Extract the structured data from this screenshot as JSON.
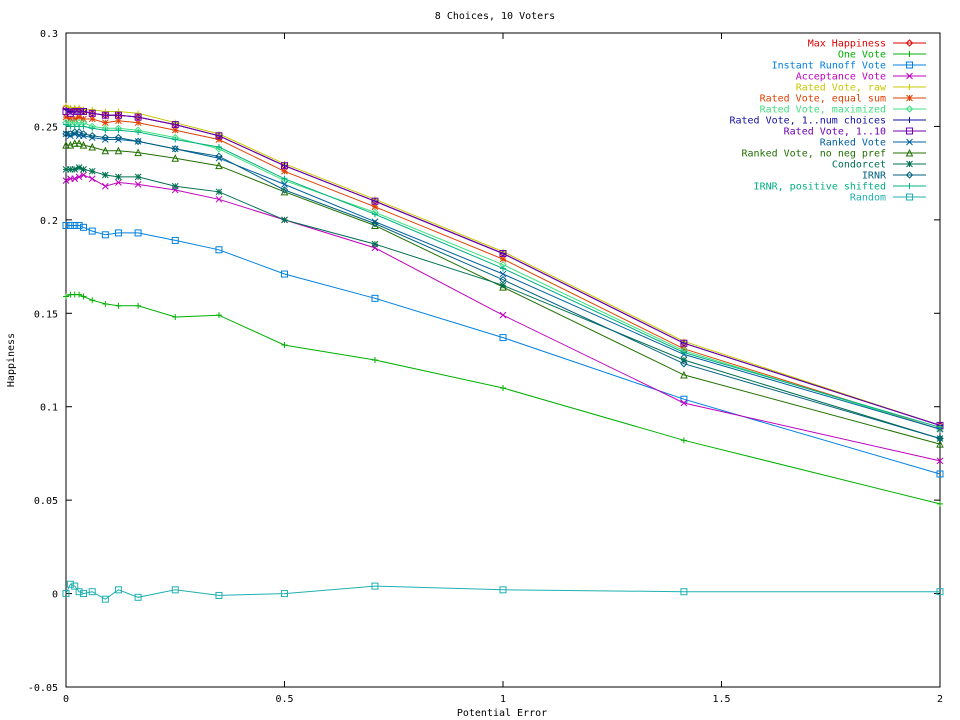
{
  "chart_data": {
    "type": "line",
    "title": "8 Choices, 10 Voters",
    "xlabel": "Potential Error",
    "ylabel": "Happiness",
    "xlim": [
      0,
      2
    ],
    "ylim": [
      -0.05,
      0.3
    ],
    "xticks": [
      "0",
      "0.5",
      "1",
      "1.5",
      "2"
    ],
    "yticks": [
      "0.3",
      "0.25",
      "0.2",
      "0.15",
      "0.1",
      "0.05",
      "0",
      "-0.05"
    ],
    "legend_position": "top-right",
    "grid": false,
    "x": [
      0,
      0.01,
      0.02,
      0.03,
      0.04,
      0.06,
      0.09,
      0.12,
      0.165,
      0.25,
      0.35,
      0.5,
      0.707,
      1.0,
      1.414,
      2.0
    ],
    "series": [
      {
        "name": "Max Happiness",
        "color": "#e00000",
        "marker": "diamond",
        "values": [
          0.26,
          0.259,
          0.259,
          0.259,
          0.258,
          0.257,
          0.256,
          0.256,
          0.255,
          0.251,
          0.245,
          0.229,
          0.21,
          0.182,
          0.134,
          0.09
        ]
      },
      {
        "name": "One Vote",
        "color": "#00b000",
        "marker": "plus",
        "values": [
          0.159,
          0.16,
          0.16,
          0.16,
          0.159,
          0.157,
          0.155,
          0.154,
          0.154,
          0.148,
          0.149,
          0.133,
          0.125,
          0.11,
          0.082,
          0.048
        ]
      },
      {
        "name": "Instant Runoff Vote",
        "color": "#0080e0",
        "marker": "square",
        "values": [
          0.197,
          0.197,
          0.197,
          0.197,
          0.196,
          0.194,
          0.192,
          0.193,
          0.193,
          0.189,
          0.184,
          0.171,
          0.158,
          0.137,
          0.104,
          0.064
        ]
      },
      {
        "name": "Acceptance Vote",
        "color": "#c000c0",
        "marker": "x",
        "values": [
          0.221,
          0.222,
          0.222,
          0.223,
          0.224,
          0.222,
          0.218,
          0.22,
          0.219,
          0.216,
          0.211,
          0.2,
          0.185,
          0.149,
          0.102,
          0.071
        ]
      },
      {
        "name": "Rated Vote, raw",
        "color": "#c8c800",
        "marker": "plus",
        "values": [
          0.261,
          0.26,
          0.26,
          0.26,
          0.259,
          0.259,
          0.258,
          0.258,
          0.257,
          0.252,
          0.246,
          0.23,
          0.211,
          0.183,
          0.135,
          0.09
        ]
      },
      {
        "name": "Rated Vote, equal sum",
        "color": "#e04000",
        "marker": "star",
        "values": [
          0.255,
          0.254,
          0.254,
          0.255,
          0.254,
          0.254,
          0.252,
          0.253,
          0.252,
          0.248,
          0.243,
          0.226,
          0.207,
          0.179,
          0.131,
          0.088
        ]
      },
      {
        "name": "Rated Vote, maximized",
        "color": "#40e080",
        "marker": "diamond",
        "values": [
          0.252,
          0.252,
          0.252,
          0.252,
          0.252,
          0.25,
          0.249,
          0.249,
          0.248,
          0.244,
          0.238,
          0.221,
          0.204,
          0.176,
          0.13,
          0.088
        ]
      },
      {
        "name": "Rated Vote, 1..num choices",
        "color": "#1010a0",
        "marker": "plus",
        "values": [
          0.259,
          0.258,
          0.258,
          0.258,
          0.258,
          0.257,
          0.256,
          0.256,
          0.255,
          0.251,
          0.245,
          0.229,
          0.21,
          0.182,
          0.134,
          0.09
        ]
      },
      {
        "name": "Rated Vote, 1..10",
        "color": "#7000b0",
        "marker": "square",
        "values": [
          0.258,
          0.257,
          0.258,
          0.258,
          0.258,
          0.257,
          0.256,
          0.256,
          0.255,
          0.251,
          0.245,
          0.229,
          0.21,
          0.182,
          0.134,
          0.09
        ]
      },
      {
        "name": "Ranked Vote",
        "color": "#0060a0",
        "marker": "x",
        "values": [
          0.246,
          0.245,
          0.246,
          0.245,
          0.245,
          0.244,
          0.243,
          0.243,
          0.242,
          0.238,
          0.233,
          0.219,
          0.199,
          0.171,
          0.128,
          0.088
        ]
      },
      {
        "name": "Ranked Vote, no neg pref",
        "color": "#207000",
        "marker": "triangle",
        "values": [
          0.24,
          0.24,
          0.241,
          0.241,
          0.24,
          0.239,
          0.237,
          0.237,
          0.236,
          0.233,
          0.229,
          0.215,
          0.197,
          0.164,
          0.117,
          0.08
        ]
      },
      {
        "name": "Condorcet",
        "color": "#007050",
        "marker": "star",
        "values": [
          0.227,
          0.227,
          0.227,
          0.228,
          0.227,
          0.226,
          0.224,
          0.223,
          0.223,
          0.218,
          0.215,
          0.2,
          0.187,
          0.165,
          0.125,
          0.083
        ]
      },
      {
        "name": "IRNR",
        "color": "#006080",
        "marker": "diamond",
        "values": [
          0.246,
          0.246,
          0.247,
          0.247,
          0.246,
          0.245,
          0.244,
          0.244,
          0.242,
          0.238,
          0.234,
          0.216,
          0.198,
          0.168,
          0.123,
          0.083
        ]
      },
      {
        "name": "IRNR, positive shifted",
        "color": "#00b080",
        "marker": "plus",
        "values": [
          0.251,
          0.25,
          0.25,
          0.25,
          0.25,
          0.249,
          0.248,
          0.248,
          0.247,
          0.243,
          0.239,
          0.222,
          0.203,
          0.174,
          0.129,
          0.089
        ]
      },
      {
        "name": "Random",
        "color": "#20b0b0",
        "marker": "square",
        "values": [
          0.0,
          0.005,
          0.004,
          0.001,
          0.0,
          0.001,
          -0.003,
          0.002,
          -0.002,
          0.002,
          -0.001,
          0.0,
          0.004,
          0.002,
          0.001,
          0.001
        ]
      }
    ]
  }
}
